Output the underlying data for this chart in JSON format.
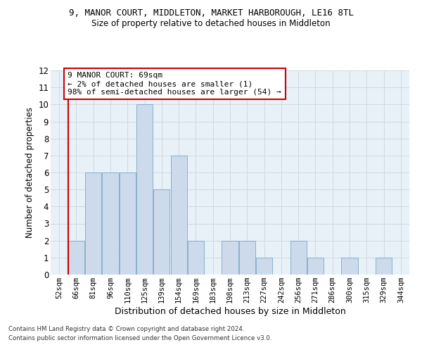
{
  "title": "9, MANOR COURT, MIDDLETON, MARKET HARBOROUGH, LE16 8TL",
  "subtitle": "Size of property relative to detached houses in Middleton",
  "xlabel": "Distribution of detached houses by size in Middleton",
  "ylabel": "Number of detached properties",
  "categories": [
    "52sqm",
    "66sqm",
    "81sqm",
    "96sqm",
    "110sqm",
    "125sqm",
    "139sqm",
    "154sqm",
    "169sqm",
    "183sqm",
    "198sqm",
    "213sqm",
    "227sqm",
    "242sqm",
    "256sqm",
    "271sqm",
    "286sqm",
    "300sqm",
    "315sqm",
    "329sqm",
    "344sqm"
  ],
  "values": [
    0,
    2,
    6,
    6,
    6,
    10,
    5,
    7,
    2,
    0,
    2,
    2,
    1,
    0,
    2,
    1,
    0,
    1,
    0,
    1,
    0
  ],
  "bar_color": "#ccdaeb",
  "bar_edge_color": "#7aaac8",
  "highlight_bar_index": 1,
  "subject_line_color": "#cc0000",
  "ylim": [
    0,
    12
  ],
  "yticks": [
    0,
    1,
    2,
    3,
    4,
    5,
    6,
    7,
    8,
    9,
    10,
    11,
    12
  ],
  "annotation_text": "9 MANOR COURT: 69sqm\n← 2% of detached houses are smaller (1)\n98% of semi-detached houses are larger (54) →",
  "annotation_box_color": "#ffffff",
  "annotation_box_edgecolor": "#cc0000",
  "footer_line1": "Contains HM Land Registry data © Crown copyright and database right 2024.",
  "footer_line2": "Contains public sector information licensed under the Open Government Licence v3.0.",
  "grid_color": "#d0d8e0",
  "background_color": "#e8f0f8"
}
